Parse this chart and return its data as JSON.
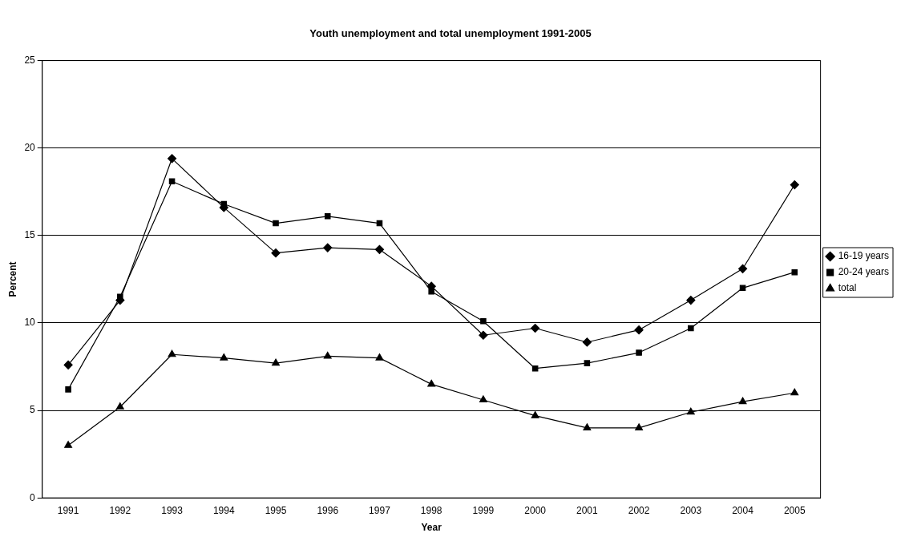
{
  "chart_data": {
    "type": "line",
    "title": "Youth unemployment and total unemployment 1991-2005",
    "xlabel": "Year",
    "ylabel": "Percent",
    "categories": [
      "1991",
      "1992",
      "1993",
      "1994",
      "1995",
      "1996",
      "1997",
      "1998",
      "1999",
      "2000",
      "2001",
      "2002",
      "2003",
      "2004",
      "2005"
    ],
    "series": [
      {
        "name": "16-19 years",
        "color": "#000000",
        "marker": "diamond",
        "values": [
          7.6,
          11.3,
          19.4,
          16.6,
          14.0,
          14.3,
          14.2,
          12.1,
          9.3,
          9.7,
          8.9,
          9.6,
          11.3,
          13.1,
          17.9
        ]
      },
      {
        "name": "20-24 years",
        "color": "#000000",
        "marker": "square",
        "values": [
          6.2,
          11.5,
          18.1,
          16.8,
          15.7,
          16.1,
          15.7,
          11.8,
          10.1,
          7.4,
          7.7,
          8.3,
          9.7,
          12.0,
          12.9
        ]
      },
      {
        "name": "total",
        "color": "#000000",
        "marker": "triangle",
        "values": [
          3.0,
          5.2,
          8.2,
          8.0,
          7.7,
          8.1,
          8.0,
          6.5,
          5.6,
          4.7,
          4.0,
          4.0,
          4.9,
          5.5,
          6.0
        ]
      }
    ],
    "ylim": [
      0,
      25
    ],
    "yticks": [
      0,
      5,
      10,
      15,
      20,
      25
    ],
    "grid": "y",
    "legend": "right",
    "line_style": "solid"
  }
}
